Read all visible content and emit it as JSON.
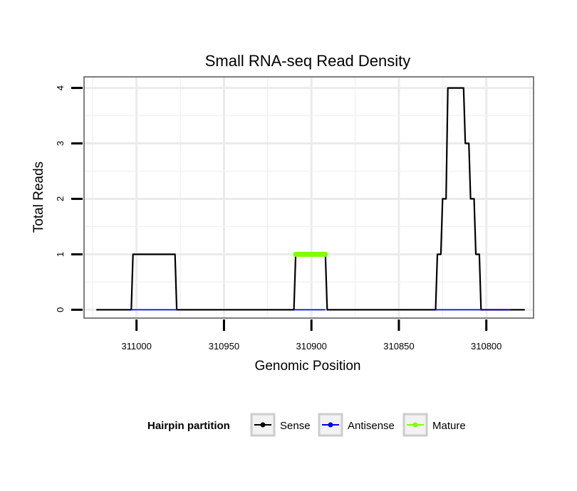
{
  "chart_data": {
    "type": "line",
    "title": "Small RNA-seq Read Density",
    "xlabel": "Genomic Position",
    "ylabel": "Total Reads",
    "xlim": [
      311030,
      310773
    ],
    "x_reversed": true,
    "ylim": [
      -0.15,
      4.2
    ],
    "x_ticks": [
      311000,
      310950,
      310900,
      310850,
      310800
    ],
    "x_tick_labels": [
      "311000",
      "310950",
      "310900",
      "310850",
      "310800"
    ],
    "y_ticks": [
      0,
      1,
      2,
      3,
      4
    ],
    "y_tick_labels": [
      "0",
      "1",
      "2",
      "3",
      "4"
    ],
    "grid": true,
    "legend": {
      "title": "Hairpin partition",
      "placement": "bottom",
      "entries": [
        {
          "label": "Sense",
          "color": "#000000"
        },
        {
          "label": "Antisense",
          "color": "#0000ff"
        },
        {
          "label": "Mature",
          "color": "#7fff00"
        }
      ]
    },
    "series": [
      {
        "name": "Sense",
        "color": "#000000",
        "x": [
          311023,
          311003,
          311002,
          310978,
          310977,
          310910,
          310909,
          310892,
          310891,
          310829,
          310828,
          310826,
          310825,
          310823,
          310822,
          310813,
          310812,
          310810,
          310809,
          310807,
          310806,
          310804,
          310803,
          310794,
          310793,
          310790,
          310789,
          310787,
          310786,
          310783,
          310782,
          310778
        ],
        "values": [
          0,
          0,
          1,
          1,
          0,
          0,
          1,
          1,
          0,
          0,
          1,
          1,
          2,
          2,
          4,
          4,
          3,
          3,
          2,
          2,
          1,
          1,
          0,
          0,
          0,
          0,
          0,
          0,
          0,
          0,
          0,
          0
        ]
      },
      {
        "name": "Antisense",
        "color": "#0000ff",
        "x": [
          311003,
          310977,
          310910,
          310892,
          310829,
          310786
        ],
        "values": [
          0,
          0,
          0,
          0,
          0,
          0
        ],
        "segments": [
          [
            311003,
            310977
          ],
          [
            310910,
            310892
          ],
          [
            310829,
            310786
          ]
        ]
      },
      {
        "name": "Mature",
        "color": "#7fff00",
        "x": [
          310909,
          310892
        ],
        "values": [
          1,
          1
        ]
      }
    ]
  }
}
